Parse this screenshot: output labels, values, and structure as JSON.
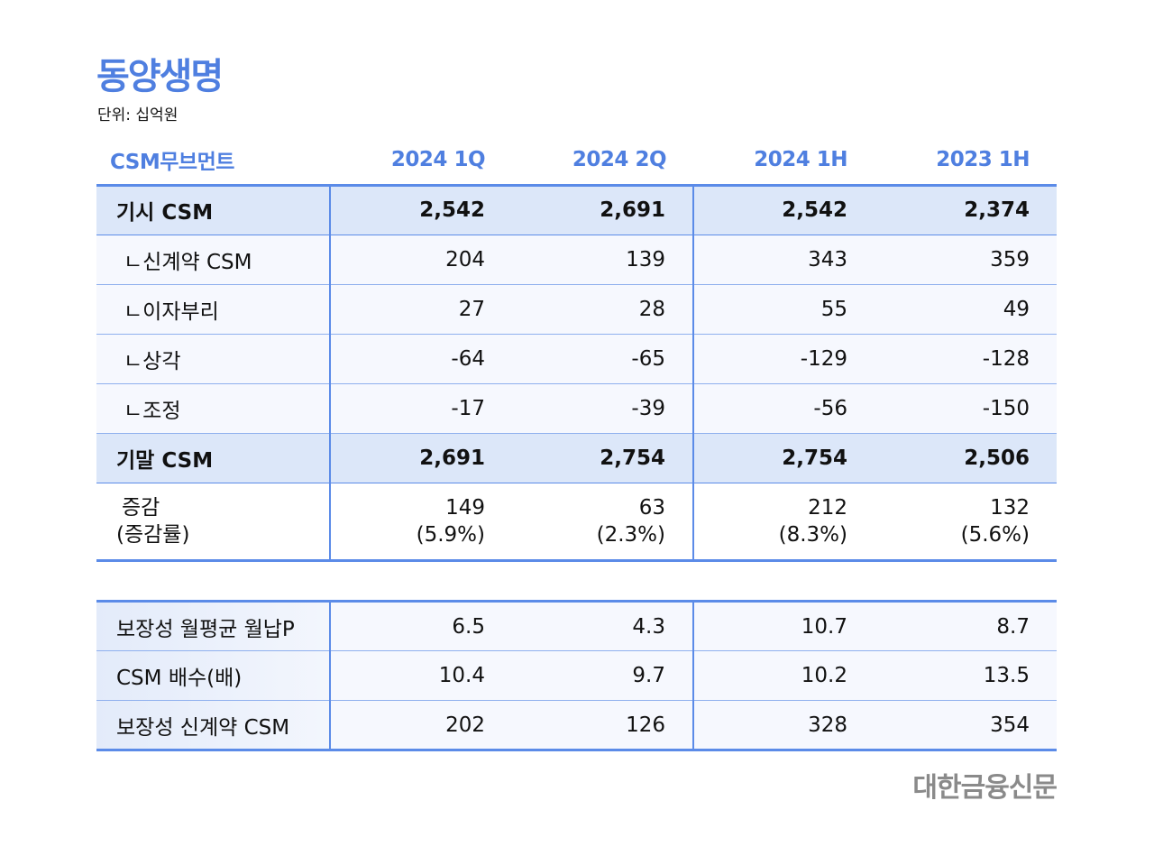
{
  "title": "동양생명",
  "unit": "단위: 십억원",
  "headers": [
    "CSM무브먼트",
    "2024 1Q",
    "2024 2Q",
    "2024 1H",
    "2023 1H"
  ],
  "rows": [
    {
      "label": "기시 CSM",
      "values": [
        "2,542",
        "2,691",
        "2,542",
        "2,374"
      ]
    },
    {
      "label": "ㄴ신계약 CSM",
      "values": [
        "204",
        "139",
        "343",
        "359"
      ]
    },
    {
      "label": "ㄴ이자부리",
      "values": [
        "27",
        "28",
        "55",
        "49"
      ]
    },
    {
      "label": "ㄴ상각",
      "values": [
        "-64",
        "-65",
        "-129",
        "-128"
      ]
    },
    {
      "label": "ㄴ조정",
      "values": [
        "-17",
        "-39",
        "-56",
        "-150"
      ]
    },
    {
      "label": "기말 CSM",
      "values": [
        "2,691",
        "2,754",
        "2,754",
        "2,506"
      ]
    }
  ],
  "change": {
    "label1": "증감",
    "label2": "(증감률)",
    "values": [
      "149",
      "63",
      "212",
      "132"
    ],
    "rates": [
      "(5.9%)",
      "(2.3%)",
      "(8.3%)",
      "(5.6%)"
    ]
  },
  "rows2": [
    {
      "label": "보장성 월평균 월납P",
      "values": [
        "6.5",
        "4.3",
        "10.7",
        "8.7"
      ]
    },
    {
      "label": "CSM 배수(배)",
      "values": [
        "10.4",
        "9.7",
        "10.2",
        "13.5"
      ]
    },
    {
      "label": "보장성 신계약 CSM",
      "values": [
        "202",
        "126",
        "328",
        "354"
      ]
    }
  ],
  "logo": "대한금융신문"
}
